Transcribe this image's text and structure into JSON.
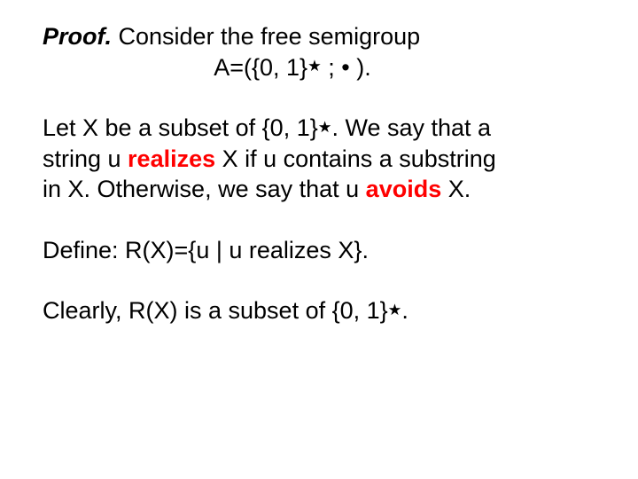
{
  "colors": {
    "text": "#000000",
    "highlight": "#ff0000",
    "background": "#ffffff"
  },
  "typography": {
    "font_family": "Arial",
    "font_size_pt": 20,
    "line_height": 1.28
  },
  "p1": {
    "proof_label": "Proof.",
    "line1_rest": " Consider the free semigroup",
    "line2_pre": "A=({0, 1}",
    "star": "★",
    "line2_post": " ; • )."
  },
  "p2": {
    "l1_pre": "Let X be a subset of {0, 1}",
    "star": "★",
    "l1_post": ".  We say that a",
    "l2_pre": "string u ",
    "realizes": "realizes",
    "l2_post": " X if u contains a substring",
    "l3_pre": "in X. Otherwise, we say that u ",
    "avoids": "avoids",
    "l3_post": " X."
  },
  "p3": {
    "text": "Define:  R(X)={u | u realizes X}."
  },
  "p4": {
    "pre": "Clearly, R(X) is a subset of {0, 1}",
    "star": "★",
    "post": "."
  }
}
